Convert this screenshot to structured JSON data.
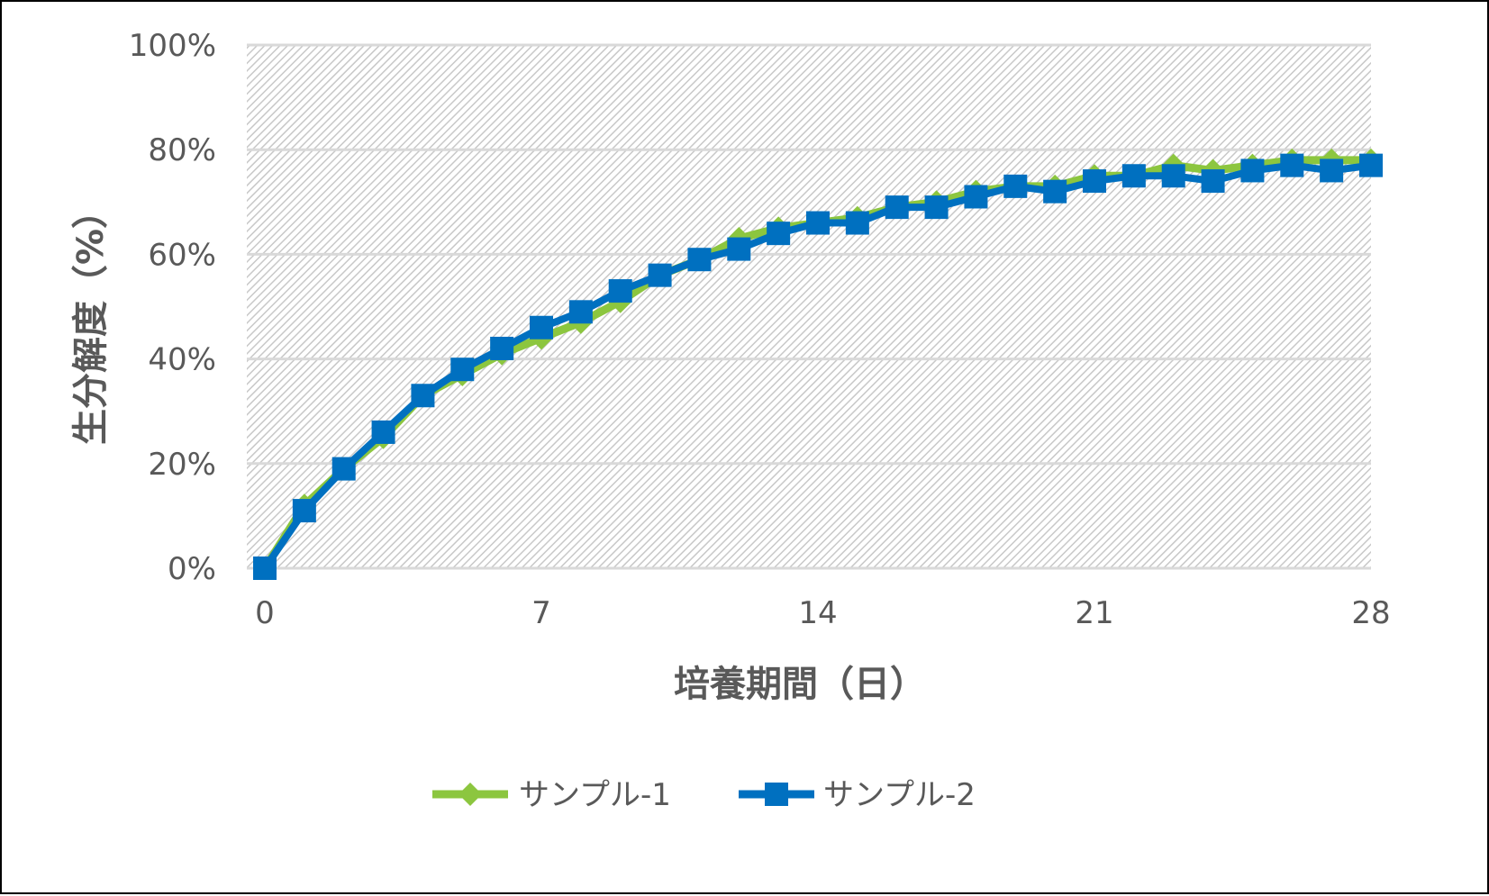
{
  "chart_data": {
    "type": "line",
    "title": "",
    "xlabel": "培養期間（日）",
    "ylabel": "生分解度（%）",
    "x": [
      0,
      1,
      2,
      3,
      4,
      5,
      6,
      7,
      8,
      9,
      10,
      11,
      12,
      13,
      14,
      15,
      16,
      17,
      18,
      19,
      20,
      21,
      22,
      23,
      24,
      25,
      26,
      27,
      28
    ],
    "xlim": [
      0,
      28
    ],
    "x_ticks": [
      "0",
      "7",
      "14",
      "21",
      "28"
    ],
    "x_tick_values": [
      0,
      7,
      14,
      21,
      28
    ],
    "ylim": [
      0,
      100
    ],
    "y_ticks": [
      "0%",
      "20%",
      "40%",
      "60%",
      "80%",
      "100%"
    ],
    "y_tick_values": [
      0,
      20,
      40,
      60,
      80,
      100
    ],
    "grid": true,
    "legend_position": "bottom",
    "series": [
      {
        "name": "サンプル-1",
        "color": "#8cc63f",
        "marker": "diamond",
        "values": [
          0,
          12,
          19,
          25,
          33,
          37,
          41,
          44,
          47,
          51,
          56,
          59,
          63,
          65,
          66,
          67,
          69,
          70,
          72,
          73,
          73,
          75,
          75,
          77,
          76,
          77,
          78,
          78,
          78
        ]
      },
      {
        "name": "サンプル-2",
        "color": "#0070c0",
        "marker": "square",
        "values": [
          0,
          11,
          19,
          26,
          33,
          38,
          42,
          46,
          49,
          53,
          56,
          59,
          61,
          64,
          66,
          66,
          69,
          69,
          71,
          73,
          72,
          74,
          75,
          75,
          74,
          76,
          77,
          76,
          77
        ]
      }
    ]
  }
}
